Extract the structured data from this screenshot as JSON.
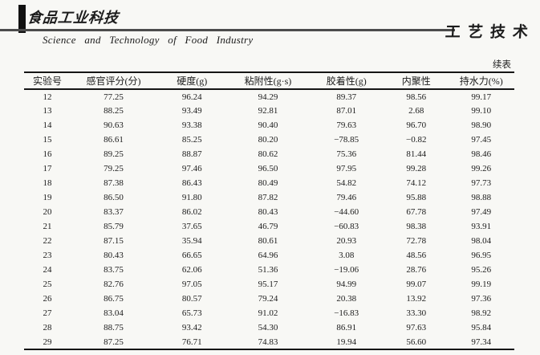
{
  "colors": {
    "paper": "#f8f8f5",
    "ink": "#1c1c1c",
    "rule": "#4c4c4c"
  },
  "header": {
    "logo_cn": "食品工业科技",
    "logo_en": "Science and Technology of Food Industry",
    "section_label": "工艺技术"
  },
  "table": {
    "continued_label": "续表",
    "columns": [
      "实验号",
      "感官评分(分)",
      "硬度(g)",
      "粘附性(g·s)",
      "胶着性(g)",
      "内聚性",
      "持水力(%)"
    ],
    "rows": [
      [
        "12",
        "77.25",
        "96.24",
        "94.29",
        "89.37",
        "98.56",
        "99.17"
      ],
      [
        "13",
        "88.25",
        "93.49",
        "92.81",
        "87.01",
        "2.68",
        "99.10"
      ],
      [
        "14",
        "90.63",
        "93.38",
        "90.40",
        "79.63",
        "96.70",
        "98.90"
      ],
      [
        "15",
        "86.61",
        "85.25",
        "80.20",
        "−78.85",
        "−0.82",
        "97.45"
      ],
      [
        "16",
        "89.25",
        "88.87",
        "80.62",
        "75.36",
        "81.44",
        "98.46"
      ],
      [
        "17",
        "79.25",
        "97.46",
        "96.50",
        "97.95",
        "99.28",
        "99.26"
      ],
      [
        "18",
        "87.38",
        "86.43",
        "80.49",
        "54.82",
        "74.12",
        "97.73"
      ],
      [
        "19",
        "86.50",
        "91.80",
        "87.82",
        "79.46",
        "95.88",
        "98.88"
      ],
      [
        "20",
        "83.37",
        "86.02",
        "80.43",
        "−44.60",
        "67.78",
        "97.49"
      ],
      [
        "21",
        "85.79",
        "37.65",
        "46.79",
        "−60.83",
        "98.38",
        "93.91"
      ],
      [
        "22",
        "87.15",
        "35.94",
        "80.61",
        "20.93",
        "72.78",
        "98.04"
      ],
      [
        "23",
        "80.43",
        "66.65",
        "64.96",
        "3.08",
        "48.56",
        "96.95"
      ],
      [
        "24",
        "83.75",
        "62.06",
        "51.36",
        "−19.06",
        "28.76",
        "95.26"
      ],
      [
        "25",
        "82.76",
        "97.05",
        "95.17",
        "94.99",
        "99.07",
        "99.19"
      ],
      [
        "26",
        "86.75",
        "80.57",
        "79.24",
        "20.38",
        "13.92",
        "97.36"
      ],
      [
        "27",
        "83.04",
        "65.73",
        "91.02",
        "−16.83",
        "33.30",
        "98.92"
      ],
      [
        "28",
        "88.75",
        "93.42",
        "54.30",
        "86.91",
        "97.63",
        "95.84"
      ],
      [
        "29",
        "87.25",
        "76.71",
        "74.83",
        "19.94",
        "56.60",
        "97.34"
      ]
    ]
  }
}
